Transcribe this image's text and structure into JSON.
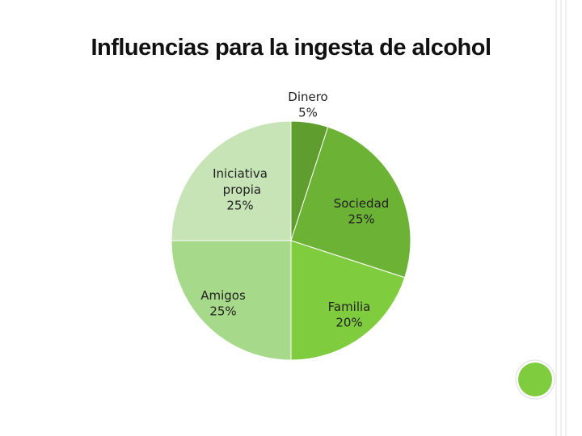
{
  "chart_data": {
    "type": "pie",
    "title": "Influencias para la ingesta de alcohol",
    "categories": [
      "Dinero",
      "Sociedad",
      "Familia",
      "Amigos",
      "Iniciativa propia"
    ],
    "values": [
      5,
      25,
      20,
      25,
      25
    ],
    "value_labels": [
      "5%",
      "25%",
      "20%",
      "25%",
      "25%"
    ],
    "colors": [
      "#5f9e2e",
      "#6cb234",
      "#7fcc3e",
      "#a7d98a",
      "#c6e4b6"
    ]
  }
}
